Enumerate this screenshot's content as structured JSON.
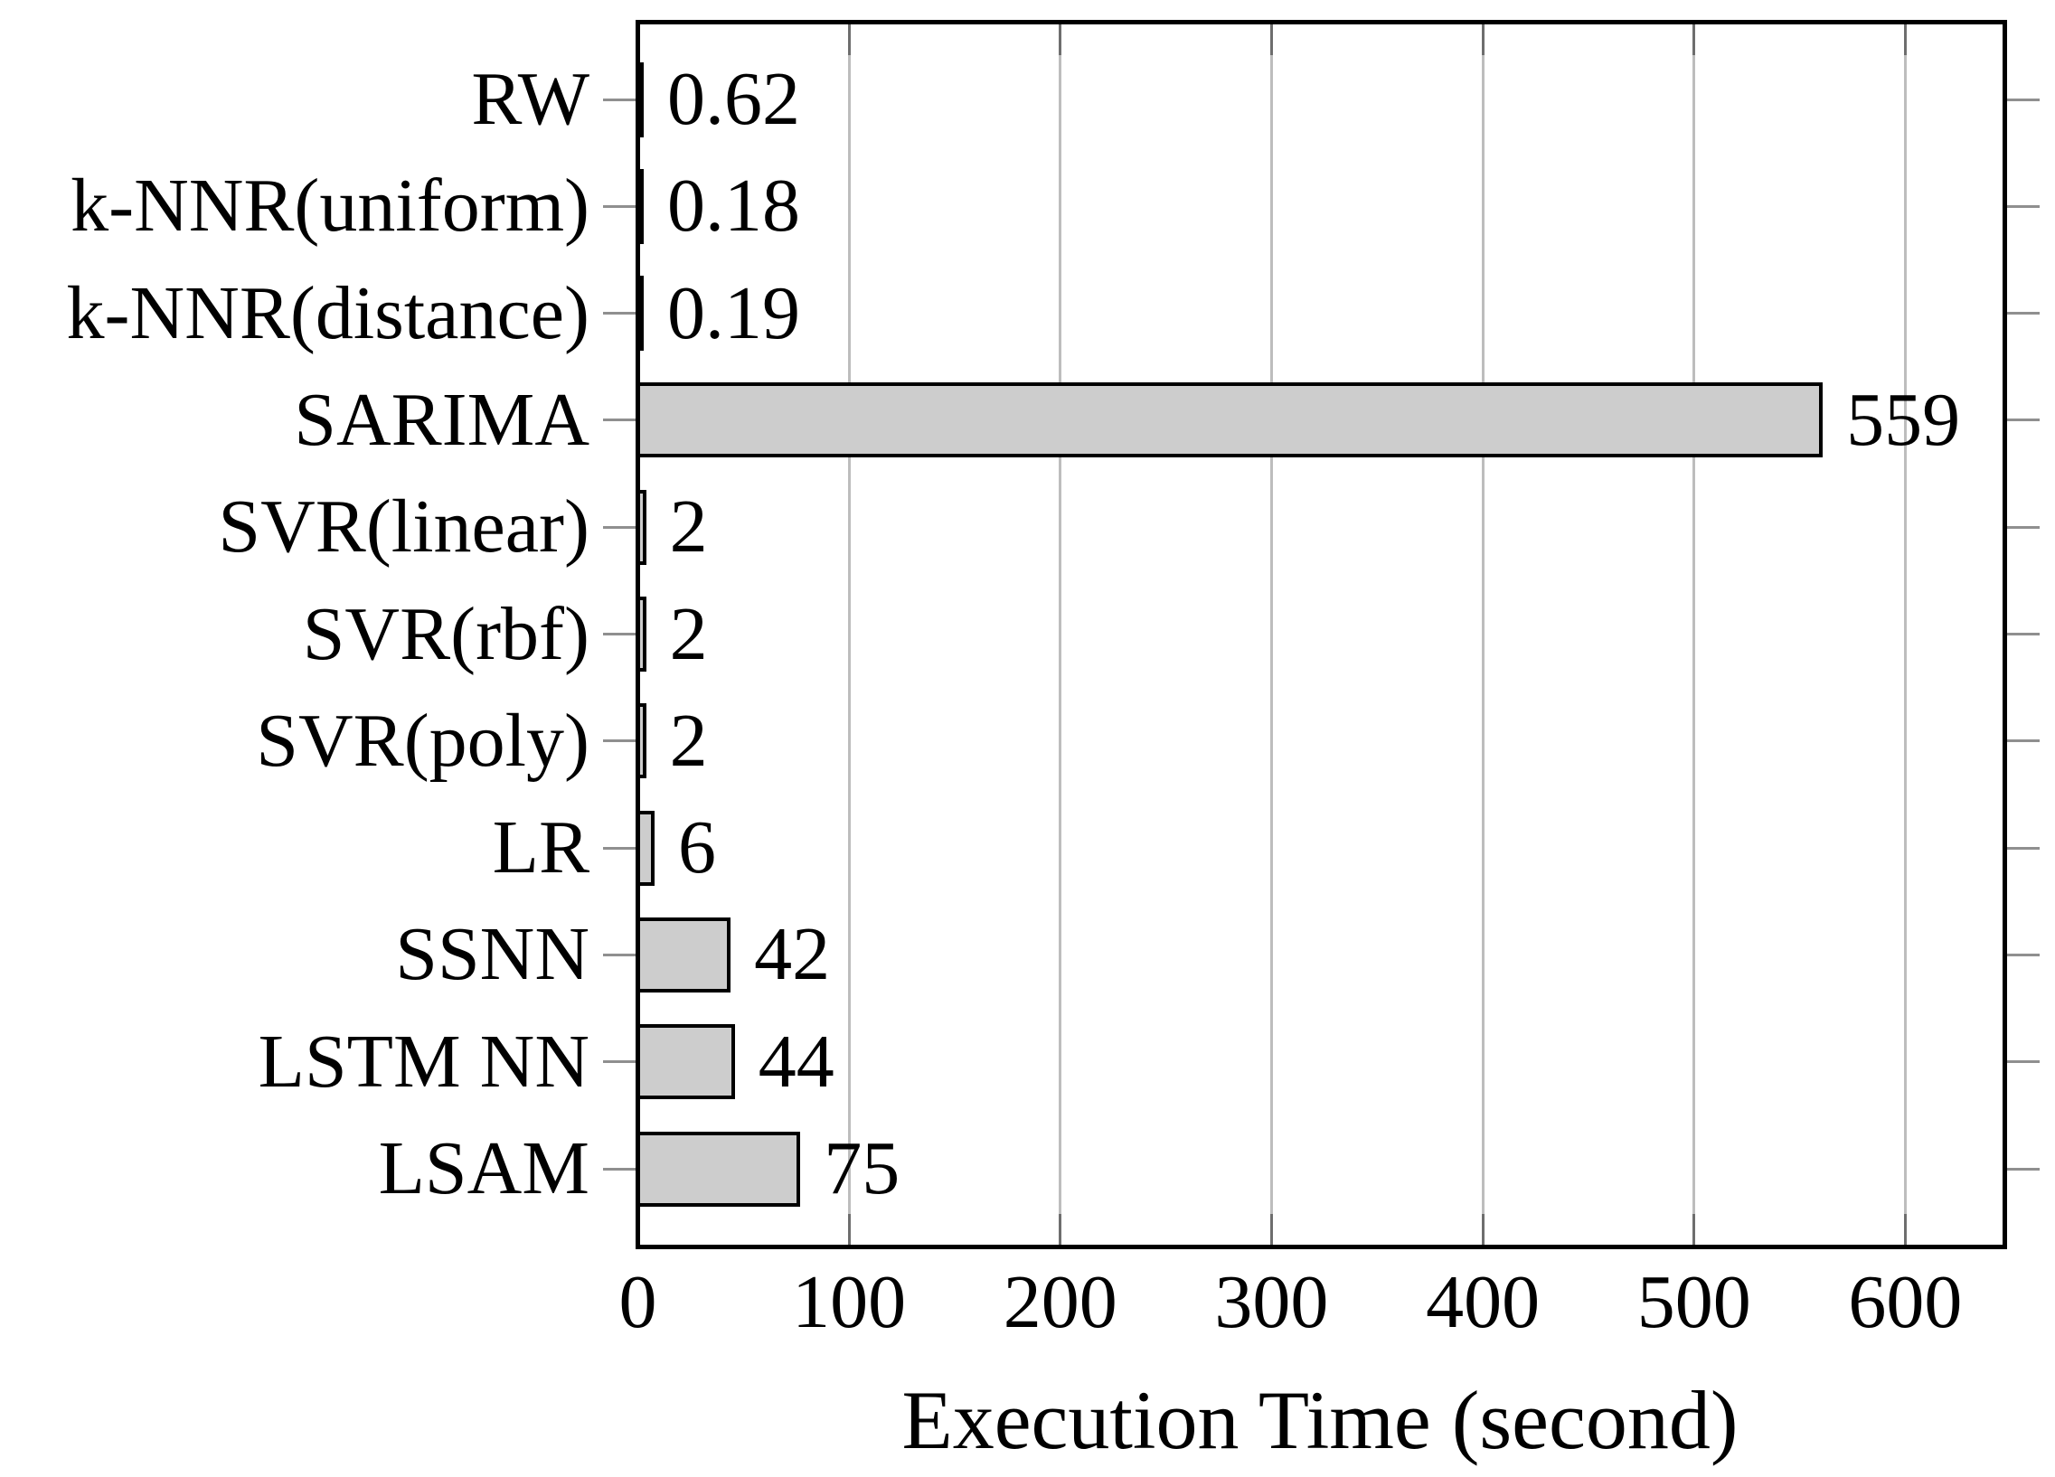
{
  "chart_data": {
    "type": "bar",
    "orientation": "horizontal",
    "xlabel": "Execution Time (second)",
    "categories": [
      "RW",
      "k-NNR(uniform)",
      "k-NNR(distance)",
      "SARIMA",
      "SVR(linear)",
      "SVR(rbf)",
      "SVR(poly)",
      "LR",
      "SSNN",
      "LSTM NN",
      "LSAM"
    ],
    "values": [
      0.62,
      0.18,
      0.19,
      559,
      2,
      2,
      2,
      6,
      42,
      44,
      75
    ],
    "value_labels": [
      "0.62",
      "0.18",
      "0.19",
      "559",
      "2",
      "2",
      "2",
      "6",
      "42",
      "44",
      "75"
    ],
    "x_ticks": [
      0,
      100,
      200,
      300,
      400,
      500,
      600
    ],
    "xlim": [
      0,
      645
    ],
    "grid": true,
    "legend": false,
    "colors": {
      "bar_fill": "#cdcdcd",
      "bar_border": "#000000",
      "grid_line": "#bdbdbd",
      "y_tick_mark": "#8f8f8f",
      "x_tick_mark": "#6e6e6e",
      "axis_line": "#000000",
      "text": "#000000",
      "background": "#ffffff"
    }
  }
}
